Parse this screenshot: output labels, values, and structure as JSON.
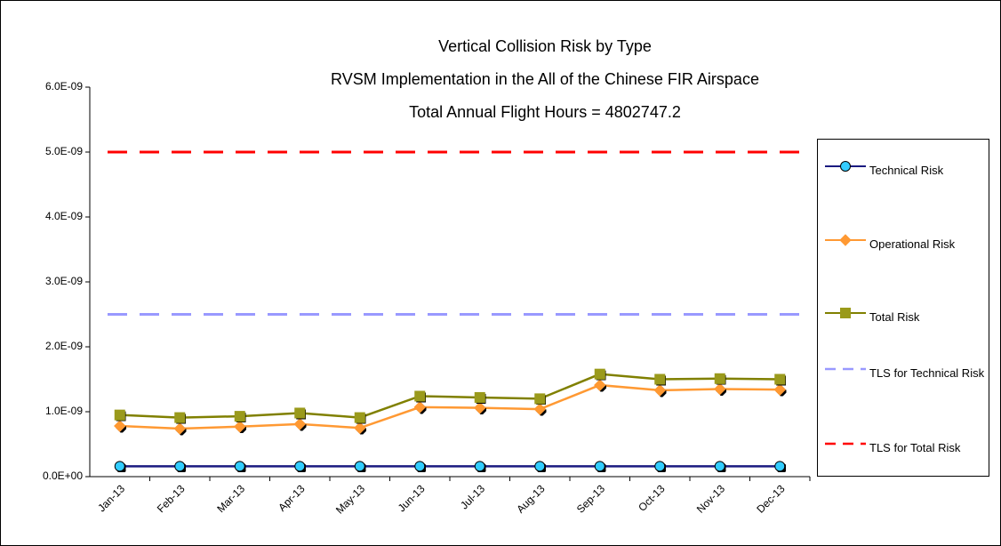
{
  "chart_data": {
    "type": "line",
    "title": [
      "Vertical Collision Risk by Type",
      "RVSM Implementation in the All of the Chinese FIR Airspace",
      "Total Annual Flight Hours = 4802747.2"
    ],
    "categories": [
      "Jan-13",
      "Feb-13",
      "Mar-13",
      "Apr-13",
      "May-13",
      "Jun-13",
      "Jul-13",
      "Aug-13",
      "Sep-13",
      "Oct-13",
      "Nov-13",
      "Dec-13"
    ],
    "series": [
      {
        "name": "Technical Risk",
        "color": "#1a1a80",
        "marker": "circle",
        "marker_color": "#33ccff",
        "values": [
          1.6e-10,
          1.6e-10,
          1.6e-10,
          1.6e-10,
          1.6e-10,
          1.6e-10,
          1.6e-10,
          1.6e-10,
          1.6e-10,
          1.6e-10,
          1.6e-10,
          1.6e-10
        ]
      },
      {
        "name": "Operational Risk",
        "color": "#ff9933",
        "marker": "diamond",
        "marker_color": "#ff9933",
        "values": [
          7.8e-10,
          7.4e-10,
          7.7e-10,
          8.1e-10,
          7.5e-10,
          1.07e-09,
          1.06e-09,
          1.04e-09,
          1.41e-09,
          1.33e-09,
          1.35e-09,
          1.34e-09
        ]
      },
      {
        "name": "Total Risk",
        "color": "#808000",
        "marker": "square",
        "marker_color": "#9a9a1a",
        "values": [
          9.5e-10,
          9.1e-10,
          9.3e-10,
          9.8e-10,
          9.1e-10,
          1.24e-09,
          1.22e-09,
          1.2e-09,
          1.58e-09,
          1.5e-09,
          1.51e-09,
          1.5e-09
        ]
      },
      {
        "name": "TLS for Technical Risk",
        "color": "#9999ff",
        "style": "dashed",
        "values": [
          2.5e-09,
          2.5e-09,
          2.5e-09,
          2.5e-09,
          2.5e-09,
          2.5e-09,
          2.5e-09,
          2.5e-09,
          2.5e-09,
          2.5e-09,
          2.5e-09,
          2.5e-09
        ]
      },
      {
        "name": "TLS for Total Risk",
        "color": "#ff0000",
        "style": "dashed",
        "values": [
          5e-09,
          5e-09,
          5e-09,
          5e-09,
          5e-09,
          5e-09,
          5e-09,
          5e-09,
          5e-09,
          5e-09,
          5e-09,
          5e-09
        ]
      }
    ],
    "ylim": [
      0,
      6e-09
    ],
    "yticks": [
      {
        "value": 0,
        "label": "0.0E+00"
      },
      {
        "value": 1e-09,
        "label": "1.0E-09"
      },
      {
        "value": 2e-09,
        "label": "2.0E-09"
      },
      {
        "value": 3e-09,
        "label": "3.0E-09"
      },
      {
        "value": 4e-09,
        "label": "4.0E-09"
      },
      {
        "value": 5e-09,
        "label": "5.0E-09"
      },
      {
        "value": 6e-09,
        "label": "6.0E-09"
      }
    ],
    "legend": "right"
  }
}
